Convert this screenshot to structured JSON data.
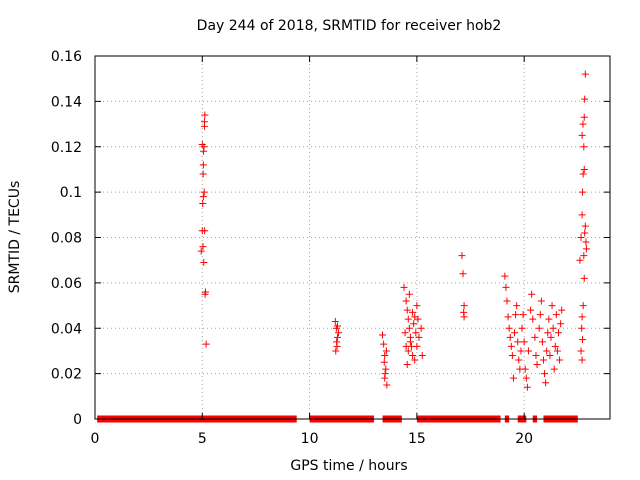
{
  "chart_data": {
    "type": "scatter",
    "title": "Day 244 of 2018, SRMTID for receiver hob2",
    "xlabel": "GPS time / hours",
    "ylabel": "SRMTID / TECUs",
    "xlim": [
      0,
      24
    ],
    "ylim": [
      0,
      0.16
    ],
    "xticks": [
      0,
      5,
      10,
      15,
      20
    ],
    "yticks": [
      0,
      0.02,
      0.04,
      0.06,
      0.08,
      0.1,
      0.12,
      0.14,
      0.16
    ],
    "ytick_labels": [
      "0",
      "0.02",
      "0.04",
      "0.06",
      "0.08",
      "0.1",
      "0.12",
      "0.14",
      "0.16"
    ],
    "grid": true,
    "marker": "+",
    "marker_color": "#ff0000",
    "zero_baseline_segments": [
      [
        0.1,
        9.4
      ],
      [
        10.0,
        13.0
      ],
      [
        13.4,
        14.3
      ],
      [
        15.0,
        18.9
      ],
      [
        19.1,
        19.3
      ],
      [
        19.7,
        20.1
      ],
      [
        20.4,
        20.6
      ],
      [
        20.9,
        22.5
      ]
    ],
    "series": [
      {
        "name": "SRMTID",
        "points": [
          [
            4.95,
            0.074
          ],
          [
            5.0,
            0.083
          ],
          [
            5.02,
            0.095
          ],
          [
            5.05,
            0.112
          ],
          [
            5.08,
            0.12
          ],
          [
            5.1,
            0.129
          ],
          [
            5.12,
            0.134
          ],
          [
            5.06,
            0.118
          ],
          [
            5.0,
            0.121
          ],
          [
            5.04,
            0.108
          ],
          [
            5.09,
            0.1
          ],
          [
            5.11,
            0.083
          ],
          [
            5.07,
            0.069
          ],
          [
            5.15,
            0.056
          ],
          [
            5.13,
            0.055
          ],
          [
            5.18,
            0.033
          ],
          [
            5.03,
            0.076
          ],
          [
            5.1,
            0.131
          ],
          [
            5.05,
            0.098
          ],
          [
            11.2,
            0.043
          ],
          [
            11.25,
            0.04
          ],
          [
            11.3,
            0.036
          ],
          [
            11.22,
            0.03
          ],
          [
            11.28,
            0.032
          ],
          [
            11.35,
            0.038
          ],
          [
            11.3,
            0.041
          ],
          [
            11.26,
            0.034
          ],
          [
            13.4,
            0.037
          ],
          [
            13.45,
            0.033
          ],
          [
            13.5,
            0.028
          ],
          [
            13.55,
            0.022
          ],
          [
            13.5,
            0.018
          ],
          [
            13.6,
            0.015
          ],
          [
            13.48,
            0.025
          ],
          [
            13.58,
            0.03
          ],
          [
            13.52,
            0.02
          ],
          [
            14.4,
            0.058
          ],
          [
            14.5,
            0.052
          ],
          [
            14.55,
            0.048
          ],
          [
            14.6,
            0.044
          ],
          [
            14.65,
            0.04
          ],
          [
            14.7,
            0.036
          ],
          [
            14.75,
            0.032
          ],
          [
            14.8,
            0.028
          ],
          [
            14.55,
            0.024
          ],
          [
            14.6,
            0.03
          ],
          [
            14.7,
            0.034
          ],
          [
            14.85,
            0.042
          ],
          [
            14.9,
            0.045
          ],
          [
            14.95,
            0.038
          ],
          [
            15.0,
            0.05
          ],
          [
            15.05,
            0.044
          ],
          [
            15.1,
            0.036
          ],
          [
            15.2,
            0.04
          ],
          [
            15.25,
            0.028
          ],
          [
            14.45,
            0.038
          ],
          [
            14.5,
            0.032
          ],
          [
            14.65,
            0.055
          ],
          [
            14.8,
            0.047
          ],
          [
            14.9,
            0.026
          ],
          [
            15.0,
            0.032
          ],
          [
            17.1,
            0.072
          ],
          [
            17.15,
            0.064
          ],
          [
            17.2,
            0.05
          ],
          [
            17.18,
            0.047
          ],
          [
            17.2,
            0.045
          ],
          [
            19.1,
            0.063
          ],
          [
            19.15,
            0.058
          ],
          [
            19.2,
            0.052
          ],
          [
            19.25,
            0.045
          ],
          [
            19.3,
            0.04
          ],
          [
            19.35,
            0.036
          ],
          [
            19.4,
            0.032
          ],
          [
            19.45,
            0.028
          ],
          [
            19.5,
            0.018
          ],
          [
            19.55,
            0.038
          ],
          [
            19.6,
            0.046
          ],
          [
            19.65,
            0.05
          ],
          [
            19.7,
            0.034
          ],
          [
            19.75,
            0.026
          ],
          [
            19.8,
            0.022
          ],
          [
            19.85,
            0.03
          ],
          [
            19.9,
            0.04
          ],
          [
            19.95,
            0.046
          ],
          [
            20.0,
            0.034
          ],
          [
            20.05,
            0.022
          ],
          [
            20.1,
            0.018
          ],
          [
            20.15,
            0.014
          ],
          [
            20.2,
            0.03
          ],
          [
            20.3,
            0.048
          ],
          [
            20.35,
            0.055
          ],
          [
            20.4,
            0.044
          ],
          [
            20.5,
            0.036
          ],
          [
            20.55,
            0.028
          ],
          [
            20.6,
            0.024
          ],
          [
            20.7,
            0.04
          ],
          [
            20.75,
            0.046
          ],
          [
            20.8,
            0.052
          ],
          [
            20.85,
            0.034
          ],
          [
            20.9,
            0.026
          ],
          [
            20.95,
            0.02
          ],
          [
            21.0,
            0.016
          ],
          [
            21.05,
            0.03
          ],
          [
            21.1,
            0.038
          ],
          [
            21.15,
            0.044
          ],
          [
            21.2,
            0.028
          ],
          [
            21.25,
            0.036
          ],
          [
            21.3,
            0.05
          ],
          [
            21.35,
            0.04
          ],
          [
            21.4,
            0.022
          ],
          [
            21.45,
            0.032
          ],
          [
            21.5,
            0.046
          ],
          [
            21.55,
            0.03
          ],
          [
            21.6,
            0.038
          ],
          [
            21.65,
            0.026
          ],
          [
            21.7,
            0.042
          ],
          [
            21.75,
            0.048
          ],
          [
            22.6,
            0.07
          ],
          [
            22.65,
            0.08
          ],
          [
            22.7,
            0.09
          ],
          [
            22.72,
            0.1
          ],
          [
            22.75,
            0.108
          ],
          [
            22.78,
            0.12
          ],
          [
            22.8,
            0.133
          ],
          [
            22.82,
            0.141
          ],
          [
            22.85,
            0.152
          ],
          [
            22.7,
            0.125
          ],
          [
            22.74,
            0.13
          ],
          [
            22.8,
            0.11
          ],
          [
            22.85,
            0.085
          ],
          [
            22.88,
            0.078
          ],
          [
            22.9,
            0.075
          ],
          [
            22.8,
            0.062
          ],
          [
            22.75,
            0.05
          ],
          [
            22.7,
            0.045
          ],
          [
            22.68,
            0.04
          ],
          [
            22.72,
            0.035
          ],
          [
            22.65,
            0.03
          ],
          [
            22.7,
            0.026
          ],
          [
            22.78,
            0.072
          ],
          [
            22.82,
            0.082
          ]
        ]
      }
    ]
  }
}
